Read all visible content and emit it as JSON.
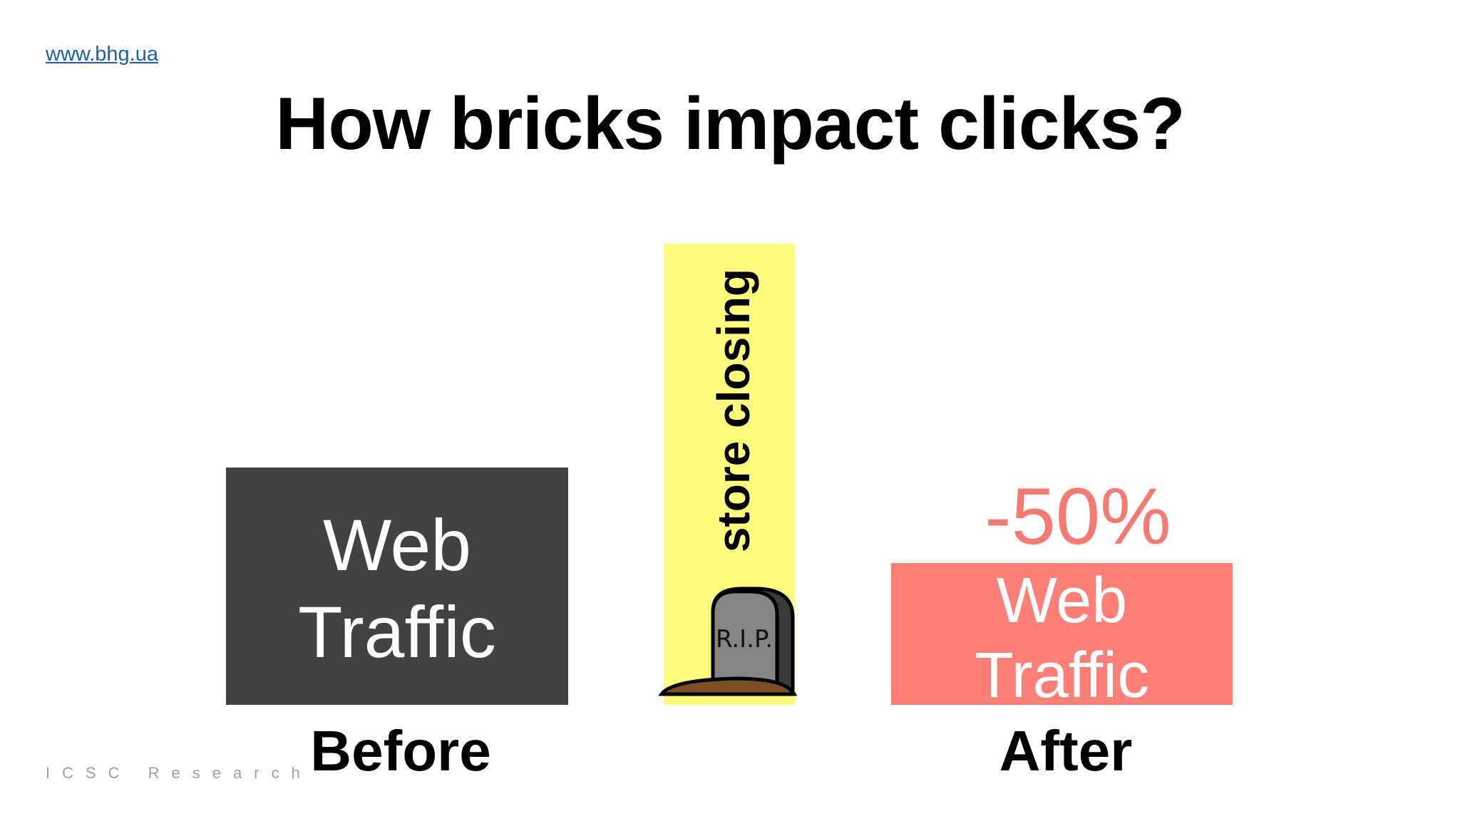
{
  "link": "www.bhg.ua",
  "title": "How bricks impact clicks?",
  "before": {
    "box_text_line1": "Web",
    "box_text_line2": "Traffic",
    "label": "Before",
    "color": "#424242"
  },
  "event": {
    "text": "store closing",
    "tombstone_text": "R.I.P.",
    "color": "#fdfb7d"
  },
  "after": {
    "change": "-50%",
    "box_text_line1": "Web",
    "box_text_line2": "Traffic",
    "label": "After",
    "color": "#fd7f78"
  },
  "footer": "ICSC Research"
}
